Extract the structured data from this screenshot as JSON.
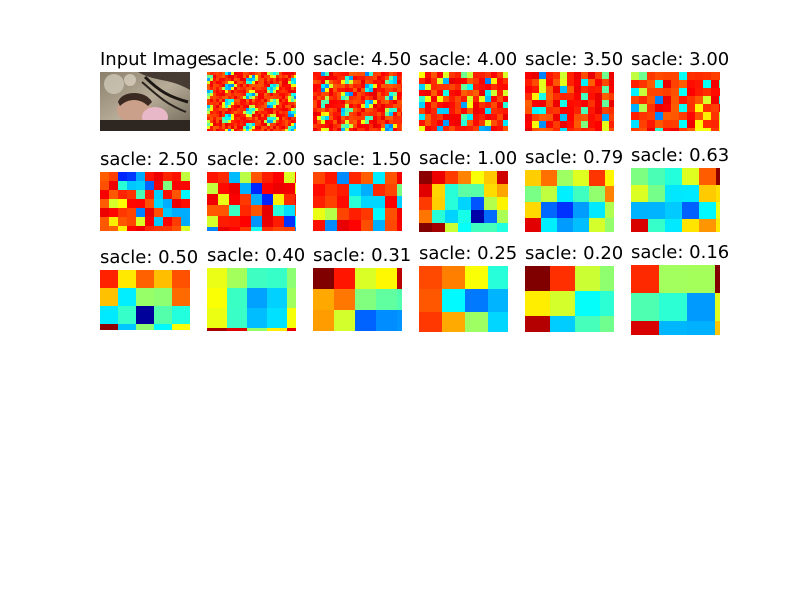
{
  "panels": [
    {
      "title": "Input Image",
      "kind": "photo",
      "scale": null
    },
    {
      "title": "sacle: 5.00",
      "kind": "heatmap",
      "scale": 5.0
    },
    {
      "title": "sacle: 4.50",
      "kind": "heatmap",
      "scale": 4.5
    },
    {
      "title": "sacle: 4.00",
      "kind": "heatmap",
      "scale": 4.0
    },
    {
      "title": "sacle: 3.50",
      "kind": "heatmap",
      "scale": 3.5
    },
    {
      "title": "sacle: 3.00",
      "kind": "heatmap",
      "scale": 3.0
    },
    {
      "title": "sacle: 2.50",
      "kind": "heatmap",
      "scale": 2.5
    },
    {
      "title": "sacle: 2.00",
      "kind": "heatmap",
      "scale": 2.0
    },
    {
      "title": "sacle: 1.50",
      "kind": "heatmap",
      "scale": 1.5
    },
    {
      "title": "sacle: 1.00",
      "kind": "heatmap",
      "scale": 1.0
    },
    {
      "title": "sacle: 0.79",
      "kind": "heatmap",
      "scale": 0.79
    },
    {
      "title": "sacle: 0.63",
      "kind": "heatmap",
      "scale": 0.63
    },
    {
      "title": "sacle: 0.50",
      "kind": "heatmap",
      "scale": 0.5
    },
    {
      "title": "sacle: 0.40",
      "kind": "heatmap",
      "scale": 0.4
    },
    {
      "title": "sacle: 0.31",
      "kind": "heatmap",
      "scale": 0.31
    },
    {
      "title": "sacle: 0.25",
      "kind": "heatmap",
      "scale": 0.25
    },
    {
      "title": "sacle: 0.20",
      "kind": "heatmap",
      "scale": 0.2
    },
    {
      "title": "sacle: 0.16",
      "kind": "heatmap",
      "scale": 0.16
    }
  ],
  "colormap": "jet"
}
